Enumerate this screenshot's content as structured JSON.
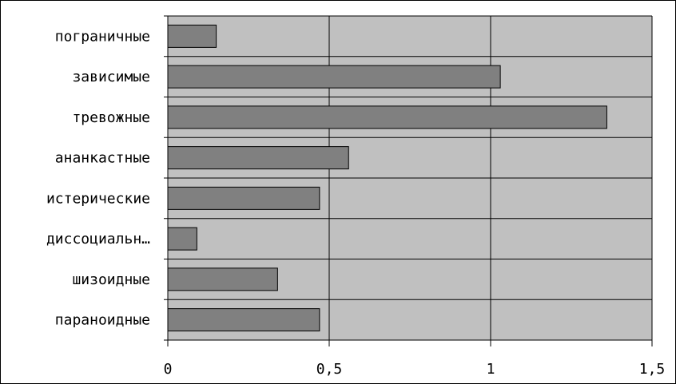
{
  "chart_data": {
    "type": "bar",
    "orientation": "horizontal",
    "categories": [
      "пограничные",
      "зависимые",
      "тревожные",
      "ананкастные",
      "истерические",
      "диссоциальн…",
      "шизоидные",
      "параноидные"
    ],
    "values": [
      0.15,
      1.03,
      1.36,
      0.56,
      0.47,
      0.09,
      0.34,
      0.47
    ],
    "xlim": [
      0,
      1.5
    ],
    "x_ticks": [
      "0",
      "0,5",
      "1",
      "1,5"
    ],
    "x_tick_values": [
      0,
      0.5,
      1,
      1.5
    ],
    "grid": true,
    "title": "",
    "xlabel": "",
    "ylabel": "",
    "colors": {
      "plot_background": "#c0c0c0",
      "bar_fill": "#808080",
      "bar_edge": "#000000",
      "gridline": "#000000",
      "frame": "#000000"
    }
  }
}
